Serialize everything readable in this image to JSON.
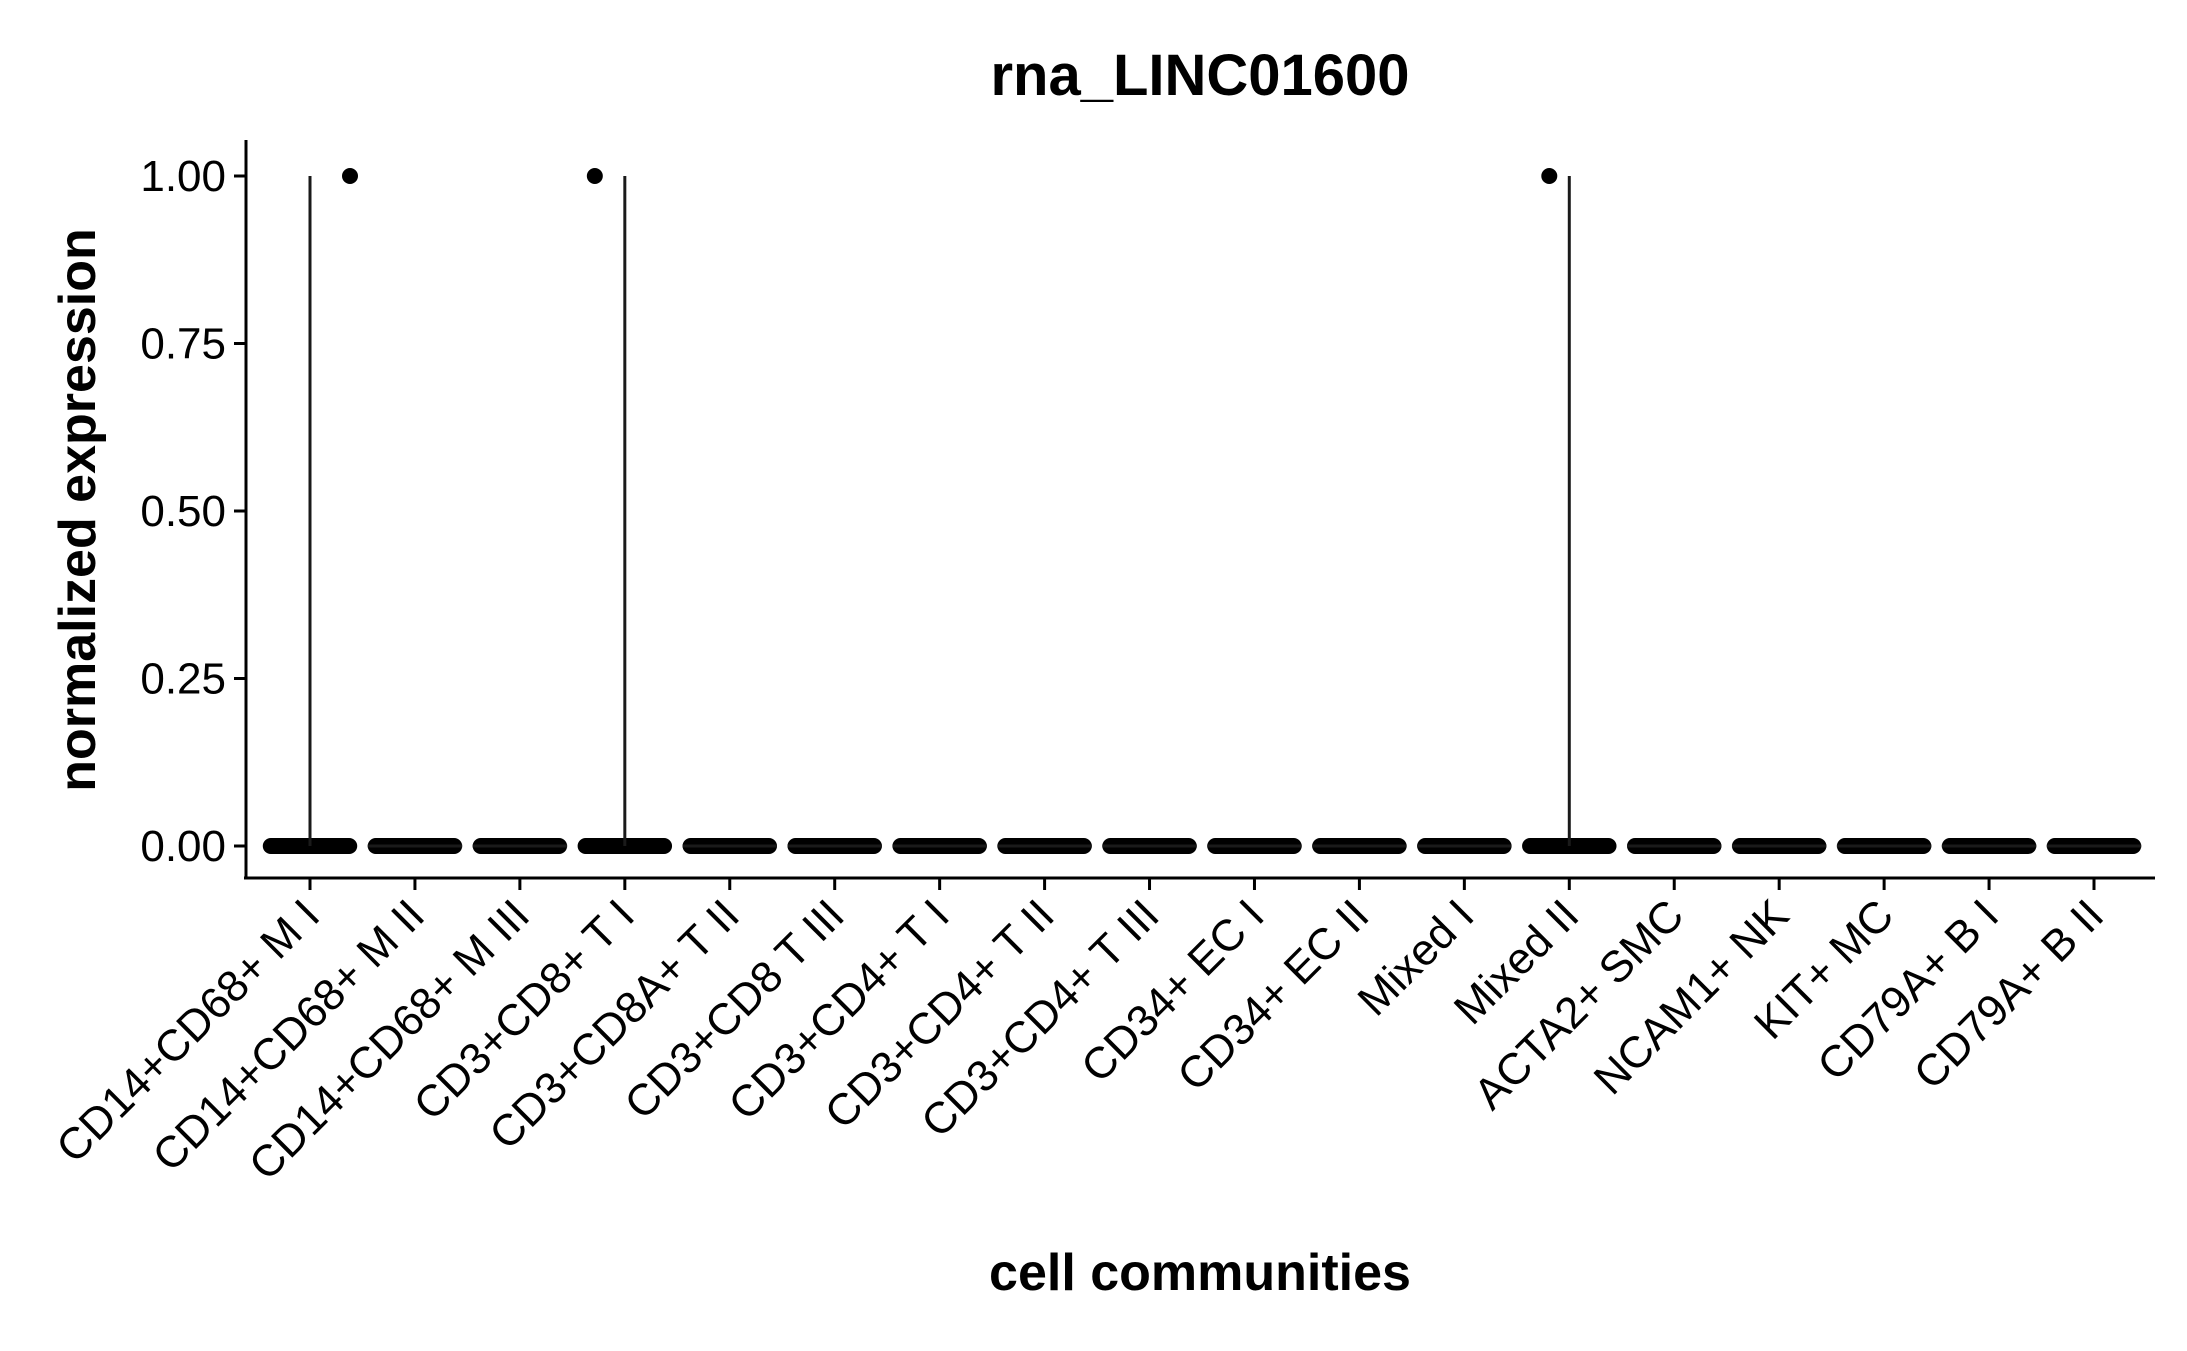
{
  "chart_data": {
    "type": "violin",
    "title": "rna_LINC01600",
    "xlabel": "cell communities",
    "ylabel": "normalized expression",
    "ylim": [
      -0.05,
      1.05
    ],
    "yticks": [
      "0.00",
      "0.25",
      "0.50",
      "0.75",
      "1.00"
    ],
    "ytick_values": [
      0,
      0.25,
      0.5,
      0.75,
      1.0
    ],
    "grid": false,
    "legend": "none",
    "categories": [
      "CD14+CD68+ M I",
      "CD14+CD68+ M II",
      "CD14+CD68+ M III",
      "CD3+CD8+ T I",
      "CD3+CD8A+ T II",
      "CD3+CD8 T III",
      "CD3+CD4+ T I",
      "CD3+CD4+ T II",
      "CD3+CD4+ T III",
      "CD34+ EC I",
      "CD34+ EC II",
      "Mixed I",
      "Mixed II",
      "ACTA2+ SMC",
      "NCAM1+ NK",
      "KIT+ MC",
      "CD79A+ B I",
      "CD79A+ B II"
    ],
    "max_values": [
      1,
      0,
      0,
      1,
      0,
      0,
      0,
      0,
      0,
      0,
      0,
      0,
      1,
      0,
      0,
      0,
      0,
      0
    ],
    "bulk_value": 0,
    "outlier_points": [
      {
        "category": "CD14+CD68+ M I",
        "value": 1.0
      },
      {
        "category": "CD3+CD8+ T I",
        "value": 1.0
      },
      {
        "category": "Mixed II",
        "value": 1.0
      }
    ]
  }
}
